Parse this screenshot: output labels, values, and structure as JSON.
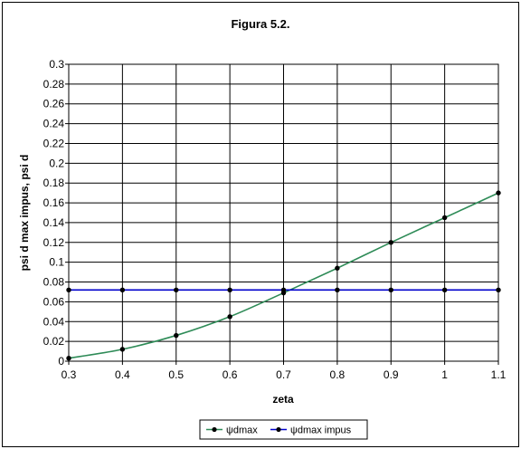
{
  "chart_data": {
    "type": "line",
    "title": "Figura 5.2.",
    "xlabel": "zeta",
    "ylabel": "psi d max impus, psi d",
    "x": [
      0.3,
      0.4,
      0.5,
      0.6,
      0.7,
      0.8,
      0.9,
      1,
      1.1
    ],
    "x_tick_labels": [
      "0.3",
      "0.4",
      "0.5",
      "0.6",
      "0.7",
      "0.8",
      "0.9",
      "1",
      "1.1"
    ],
    "xlim": [
      0.3,
      1.1
    ],
    "ylim": [
      0,
      0.3
    ],
    "y_ticks": [
      0,
      0.02,
      0.04,
      0.06,
      0.08,
      0.1,
      0.12,
      0.14,
      0.16,
      0.18,
      0.2,
      0.22,
      0.24,
      0.26,
      0.28,
      0.3
    ],
    "y_tick_labels": [
      "0",
      "0.02",
      "0.04",
      "0.06",
      "0.08",
      "0.1",
      "0.12",
      "0.14",
      "0.16",
      "0.18",
      "0.2",
      "0.22",
      "0.24",
      "0.26",
      "0.28",
      "0.3"
    ],
    "grid": true,
    "legend_position": "bottom",
    "series": [
      {
        "name": "ψdmax",
        "color": "#2e8b57",
        "marker_color": "#000000",
        "values": [
          0.003,
          0.012,
          0.026,
          0.045,
          0.069,
          0.094,
          0.12,
          0.145,
          0.17
        ]
      },
      {
        "name": "ψdmax impus",
        "color": "#0000cc",
        "marker_color": "#000000",
        "values": [
          0.072,
          0.072,
          0.072,
          0.072,
          0.072,
          0.072,
          0.072,
          0.072,
          0.072
        ]
      }
    ]
  }
}
